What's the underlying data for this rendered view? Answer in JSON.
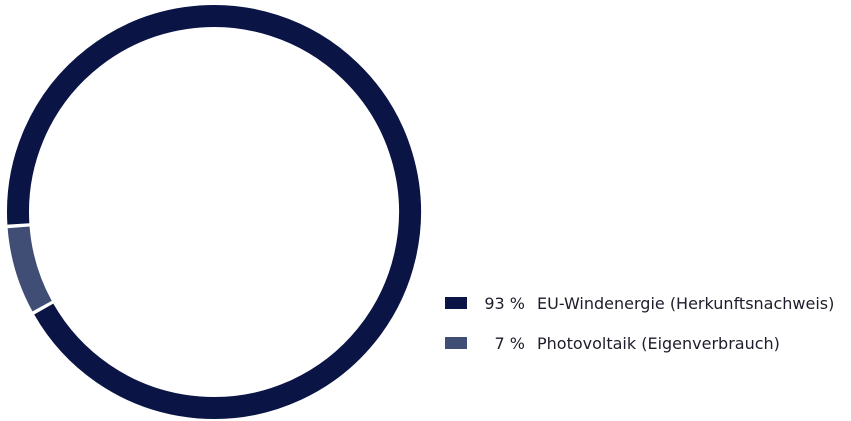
{
  "chart_data": {
    "type": "pie",
    "style": "donut",
    "title": "",
    "series": [
      {
        "name": "EU-Windenergie (Herkunftsnachweis)",
        "value": 93,
        "label": "93 %",
        "color": "#0a1445"
      },
      {
        "name": "Photovoltaik (Eigenverbrauch)",
        "value": 7,
        "label": "7 %",
        "color": "#404d75"
      }
    ],
    "legend_position": "bottom-right",
    "start_angle_deg": 176
  },
  "colors": {
    "background": "#ffffff",
    "separator": "#ffffff"
  }
}
